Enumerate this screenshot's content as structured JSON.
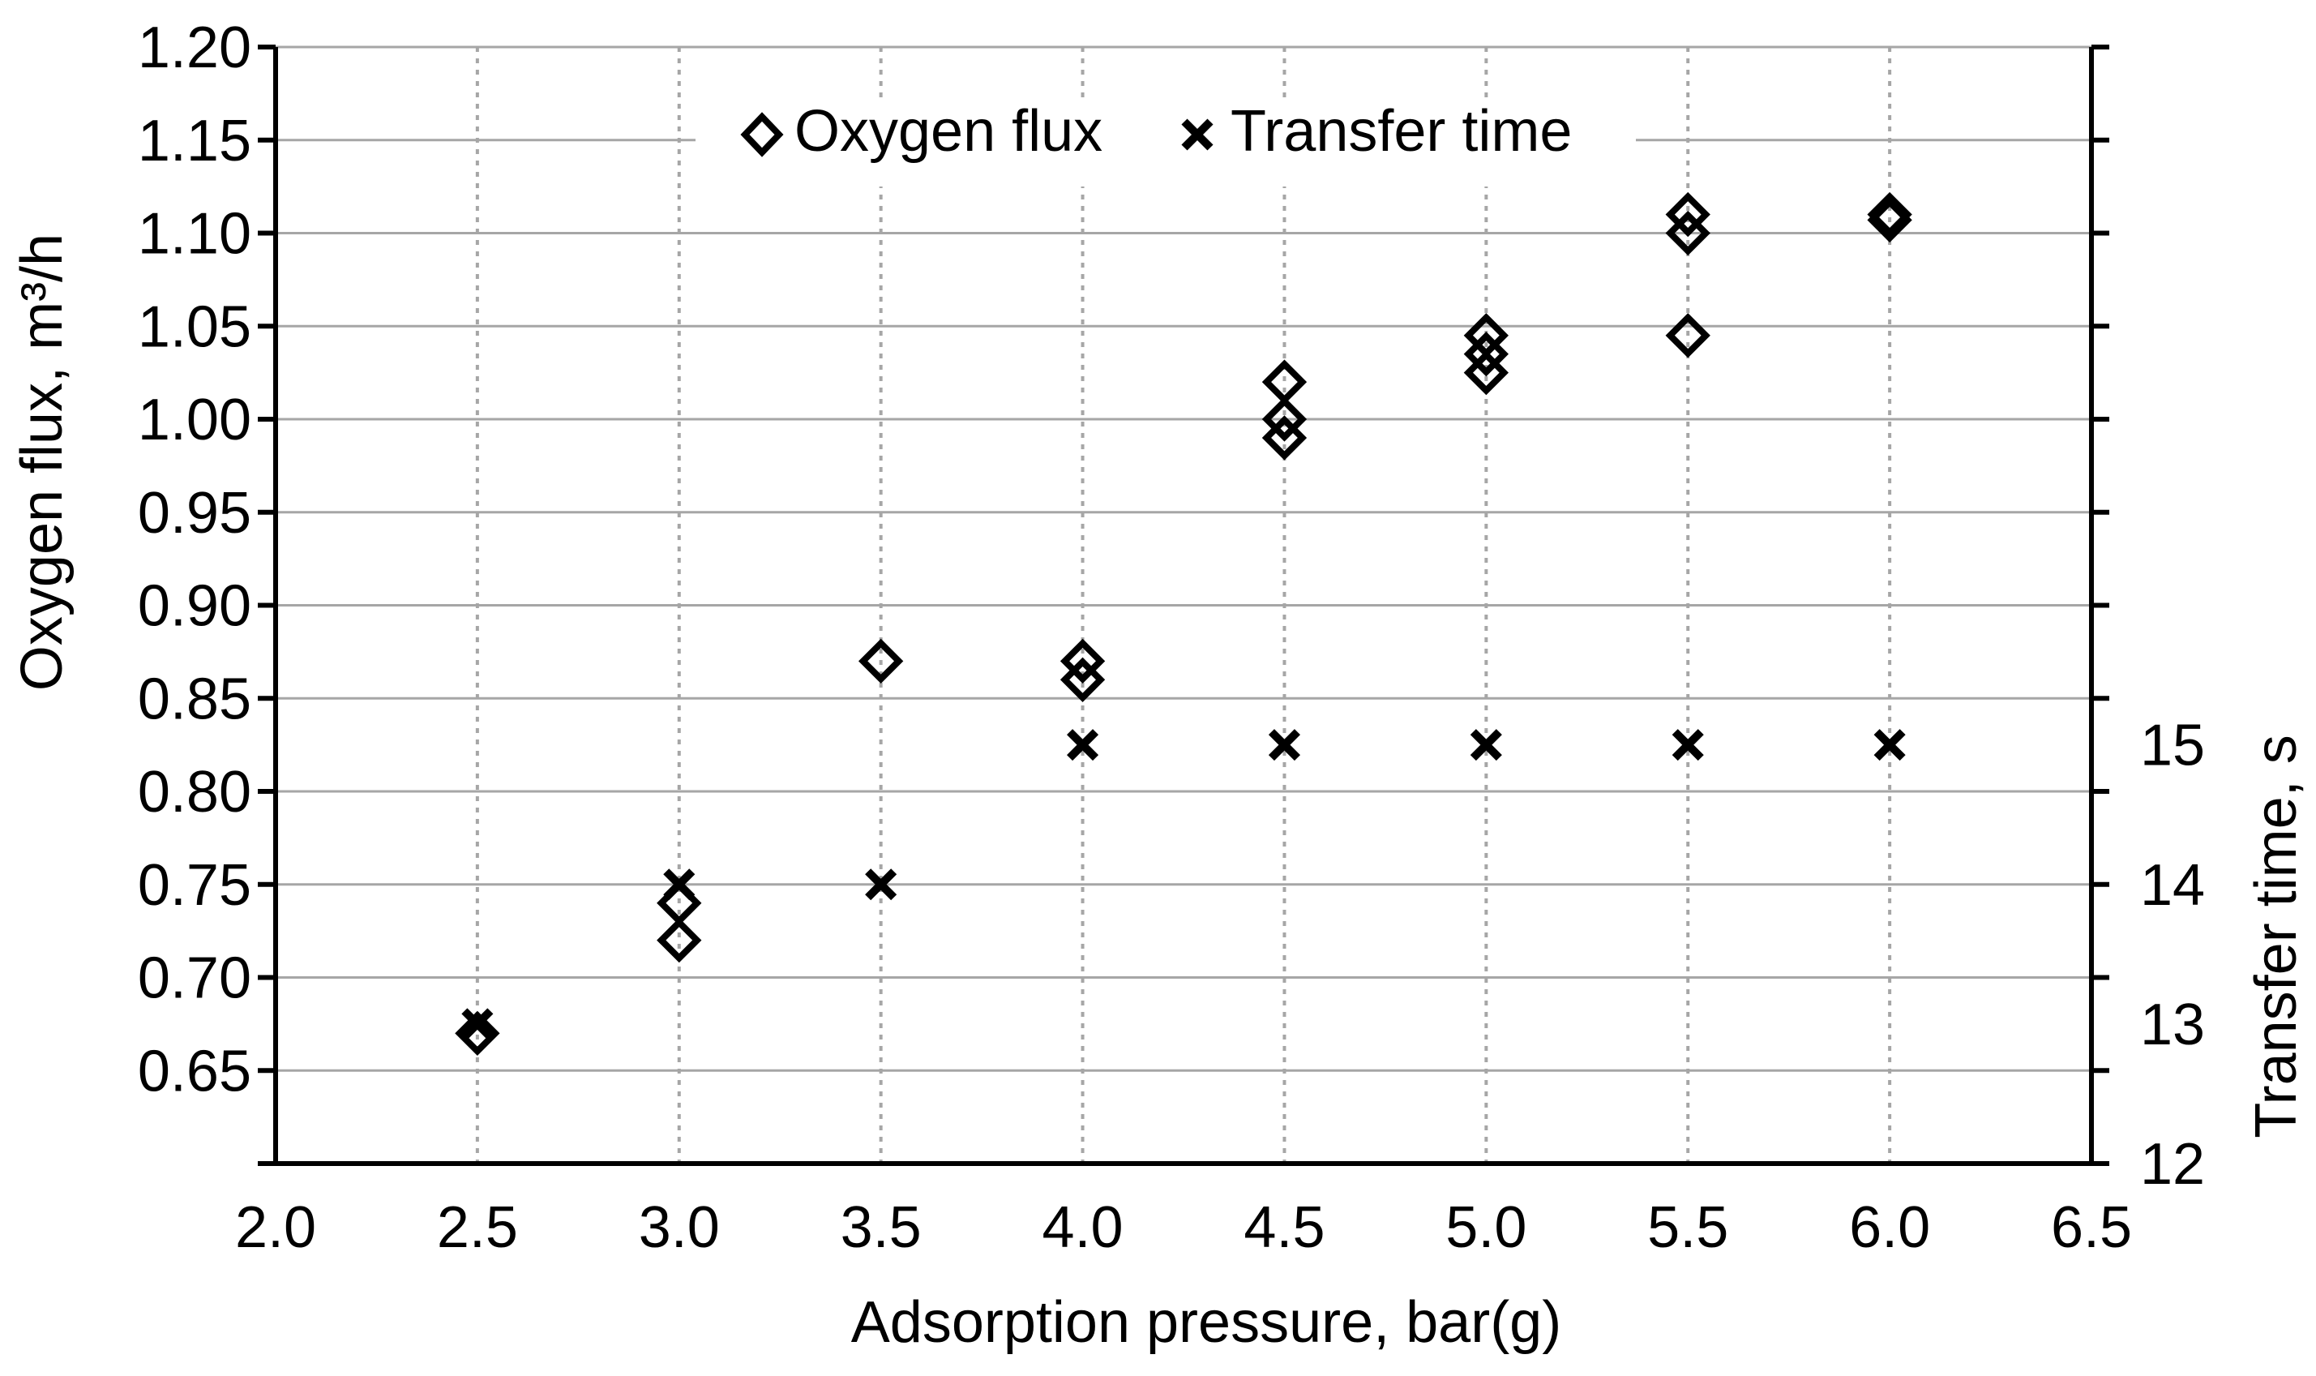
{
  "chart_data": {
    "type": "scatter",
    "title": "",
    "xlabel": "Adsorption pressure, bar(g)",
    "ylabel_left": "Oxygen flux, m³/h",
    "ylabel_right": "Transfer time, s",
    "xlim": [
      2.0,
      6.5
    ],
    "x_ticks": [
      "2.0",
      "2.5",
      "3.0",
      "3.5",
      "4.0",
      "4.5",
      "5.0",
      "5.5",
      "6.0",
      "6.5"
    ],
    "ylim_left": [
      0.6,
      1.2
    ],
    "y_left_ticks": [
      "0.65",
      "0.70",
      "0.75",
      "0.80",
      "0.85",
      "0.90",
      "0.95",
      "1.00",
      "1.05",
      "1.10",
      "1.15",
      "1.20"
    ],
    "ylim_right": [
      12,
      20
    ],
    "y_right_ticks": [
      "12",
      "13",
      "14",
      "15"
    ],
    "grid": true,
    "legend_position": "top",
    "series": [
      {
        "name": "Oxygen flux",
        "axis": "left",
        "marker": "diamond",
        "points": [
          [
            2.5,
            0.67
          ],
          [
            3.0,
            0.74
          ],
          [
            3.0,
            0.72
          ],
          [
            3.5,
            0.87
          ],
          [
            4.0,
            0.87
          ],
          [
            4.0,
            0.86
          ],
          [
            4.5,
            1.02
          ],
          [
            4.5,
            1.0
          ],
          [
            4.5,
            0.99
          ],
          [
            5.0,
            1.045
          ],
          [
            5.0,
            1.035
          ],
          [
            5.0,
            1.025
          ],
          [
            5.5,
            1.11
          ],
          [
            5.5,
            1.1
          ],
          [
            5.5,
            1.045
          ],
          [
            6.0,
            1.11
          ],
          [
            6.0,
            1.107
          ]
        ]
      },
      {
        "name": "Transfer time",
        "axis": "right",
        "marker": "x",
        "points": [
          [
            2.5,
            13
          ],
          [
            3.0,
            14
          ],
          [
            3.5,
            14
          ],
          [
            4.0,
            15
          ],
          [
            4.5,
            15
          ],
          [
            5.0,
            15
          ],
          [
            5.5,
            15
          ],
          [
            6.0,
            15
          ]
        ]
      }
    ]
  }
}
